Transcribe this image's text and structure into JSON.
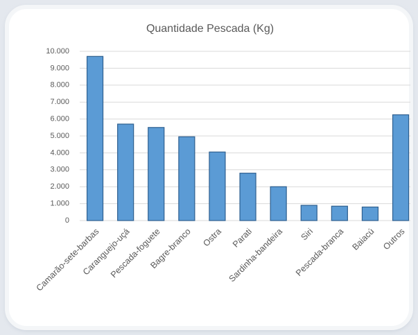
{
  "chart_data": {
    "type": "bar",
    "title": "Quantidade Pescada (Kg)",
    "categories": [
      "Camarão-sete-barbas",
      "Caranguejo-uçá",
      "Pescada-foguete",
      "Bagre-branco",
      "Ostra",
      "Parati",
      "Sardinha-bandeira",
      "Siri",
      "Pescada-branca",
      "Baiacú",
      "Outros"
    ],
    "values": [
      9700,
      5700,
      5500,
      4950,
      4050,
      2800,
      2000,
      900,
      850,
      800,
      6250
    ],
    "color": "#5b9bd5",
    "ylim": [
      0,
      10000
    ],
    "yticks": [
      0,
      {
        "value": 1000,
        "label": "1.000"
      },
      {
        "value": 2000,
        "label": "2.000"
      },
      {
        "value": 3000,
        "label": "3.000"
      },
      {
        "value": 4000,
        "label": "4.000"
      },
      {
        "value": 5000,
        "label": "5.000"
      },
      {
        "value": 6000,
        "label": "6.000"
      },
      {
        "value": 7000,
        "label": "7.000"
      },
      {
        "value": 8000,
        "label": "8.000"
      },
      {
        "value": 9000,
        "label": "9.000"
      },
      {
        "value": 10000,
        "label": "10.000"
      }
    ],
    "grid": true
  }
}
